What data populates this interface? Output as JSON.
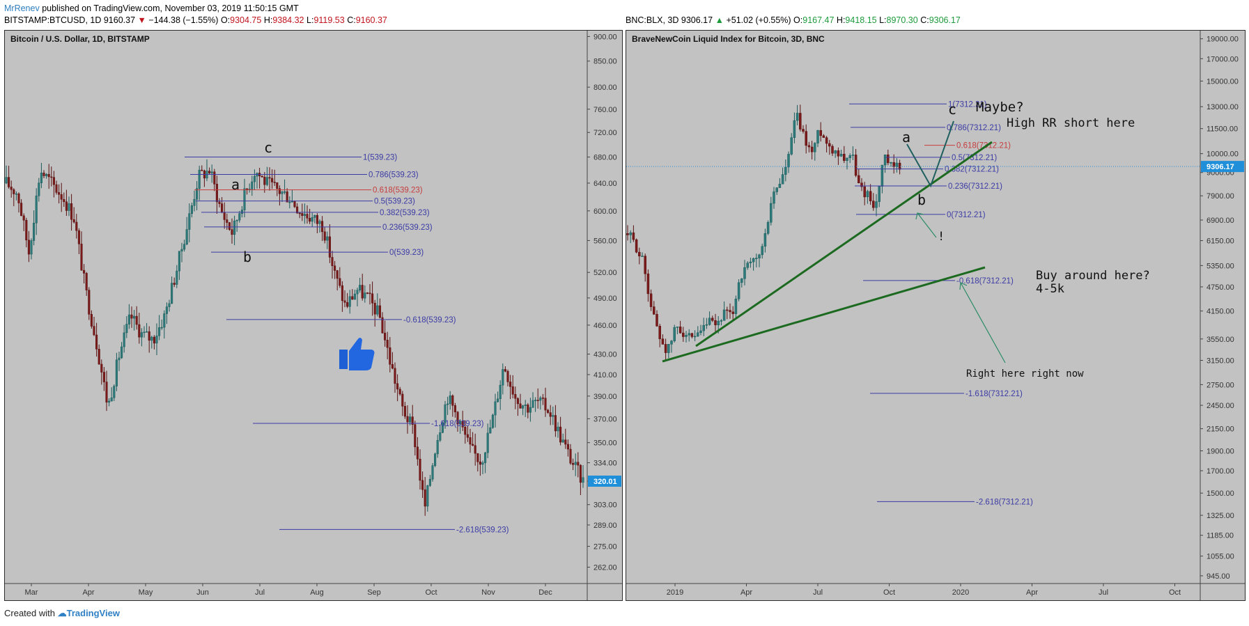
{
  "header": {
    "author": "MrRenev",
    "published": "published on TradingView.com, November 03, 2019 11:50:15 GMT"
  },
  "footer": {
    "created_with": "Created with",
    "brand": "TradingView"
  },
  "colors": {
    "bg": "#c2c2c2",
    "fib_blue": "#3b3ba5",
    "fib_red": "#c63d3d",
    "green_line": "#1c6a20",
    "candle_up": "#1a5a5a",
    "candle_down": "#5a1010",
    "price_badge": "#1e8fd8",
    "axis_text": "#333333"
  },
  "panels": [
    {
      "id": "left",
      "symbol_line": {
        "symbol": "BITSTAMP:BTCUSD, 1D",
        "last": "9160.37",
        "arrow": "▼",
        "change": "−144.38 (−1.55%)",
        "o_label": "O:",
        "o": "9304.75",
        "h_label": "H:",
        "h": "9384.32",
        "l_label": "L:",
        "l": "9119.53",
        "c_label": "C:",
        "c": "9160.37",
        "direction": "down"
      },
      "title": "Bitcoin / U.S. Dollar, 1D, BITSTAMP",
      "current_price": "320.01",
      "chart_data": {
        "type": "candlestick",
        "scale": "log",
        "y_ticks": [
          "900.00",
          "850.00",
          "800.00",
          "760.00",
          "720.00",
          "680.00",
          "640.00",
          "600.00",
          "560.00",
          "520.00",
          "490.00",
          "460.00",
          "430.00",
          "410.00",
          "390.00",
          "370.00",
          "350.00",
          "334.00",
          "320.00",
          "303.00",
          "289.00",
          "275.00",
          "262.00"
        ],
        "x_ticks": [
          "Mar",
          "Apr",
          "May",
          "Jun",
          "Jul",
          "Aug",
          "Sep",
          "Oct",
          "Nov",
          "Dec"
        ],
        "fib_levels": [
          {
            "label": "1(539.23)",
            "ratio": 1,
            "price": 680
          },
          {
            "label": "0.786(539.23)",
            "ratio": 0.786,
            "price": 653
          },
          {
            "label": "0.618(539.23)",
            "ratio": 0.618,
            "price": 630,
            "color": "red"
          },
          {
            "label": "0.5(539.23)",
            "ratio": 0.5,
            "price": 614
          },
          {
            "label": "0.382(539.23)",
            "ratio": 0.382,
            "price": 598
          },
          {
            "label": "0.236(539.23)",
            "ratio": 0.236,
            "price": 578
          },
          {
            "label": "0(539.23)",
            "ratio": 0,
            "price": 545
          },
          {
            "label": "-0.618(539.23)",
            "ratio": -0.618,
            "price": 466
          },
          {
            "label": "-1.618(539.23)",
            "ratio": -1.618,
            "price": 366
          },
          {
            "label": "-2.618(539.23)",
            "ratio": -2.618,
            "price": 286
          }
        ],
        "wave_labels": [
          "a",
          "b",
          "c"
        ],
        "price_path": [
          [
            0,
            640
          ],
          [
            1,
            625
          ],
          [
            2,
            545
          ],
          [
            3,
            660
          ],
          [
            4,
            640
          ],
          [
            5,
            620
          ],
          [
            6,
            590
          ],
          [
            7,
            500
          ],
          [
            8,
            440
          ],
          [
            9,
            380
          ],
          [
            10,
            430
          ],
          [
            11,
            470
          ],
          [
            12,
            450
          ],
          [
            13,
            445
          ],
          [
            14,
            470
          ],
          [
            15,
            520
          ],
          [
            16,
            580
          ],
          [
            17,
            650
          ],
          [
            18,
            660
          ],
          [
            19,
            600
          ],
          [
            20,
            570
          ],
          [
            21,
            620
          ],
          [
            22,
            660
          ],
          [
            23,
            640
          ],
          [
            24,
            630
          ],
          [
            25,
            620
          ],
          [
            26,
            600
          ],
          [
            27,
            590
          ],
          [
            28,
            580
          ],
          [
            29,
            520
          ],
          [
            30,
            480
          ],
          [
            31,
            500
          ],
          [
            32,
            490
          ],
          [
            33,
            470
          ],
          [
            34,
            420
          ],
          [
            35,
            380
          ],
          [
            36,
            360
          ],
          [
            37,
            300
          ],
          [
            38,
            350
          ],
          [
            39,
            390
          ],
          [
            40,
            370
          ],
          [
            41,
            345
          ],
          [
            42,
            335
          ],
          [
            43,
            370
          ],
          [
            44,
            420
          ],
          [
            45,
            390
          ],
          [
            46,
            380
          ],
          [
            47,
            385
          ],
          [
            48,
            378
          ],
          [
            49,
            355
          ],
          [
            50,
            335
          ],
          [
            51,
            320
          ]
        ]
      }
    },
    {
      "id": "right",
      "symbol_line": {
        "symbol": "BNC:BLX, 3D",
        "last": "9306.17",
        "arrow": "▲",
        "change": "+51.02 (+0.55%)",
        "o_label": "O:",
        "o": "9167.47",
        "h_label": "H:",
        "h": "9418.15",
        "l_label": "L:",
        "l": "8970.30",
        "c_label": "C:",
        "c": "9306.17",
        "direction": "up"
      },
      "title": "BraveNewCoin Liquid Index for Bitcoin, 3D, BNC",
      "current_price": "9306.17",
      "chart_data": {
        "type": "candlestick",
        "scale": "log",
        "y_ticks": [
          "19000.00",
          "17000.00",
          "15000.00",
          "13000.00",
          "11500.00",
          "10000.00",
          "9000.00",
          "7900.00",
          "6900.00",
          "6150.00",
          "5350.00",
          "4750.00",
          "4150.00",
          "3550.00",
          "3150.00",
          "2750.00",
          "2450.00",
          "2150.00",
          "1900.00",
          "1700.00",
          "1500.00",
          "1325.00",
          "1185.00",
          "1055.00",
          "945.00"
        ],
        "x_ticks": [
          "2019",
          "Apr",
          "Jul",
          "Oct",
          "2020",
          "Apr",
          "Jul",
          "Oct"
        ],
        "fib_levels": [
          {
            "label": "1(7312.21)",
            "ratio": 1,
            "price": 13200
          },
          {
            "label": "0.786(7312.21)",
            "ratio": 0.786,
            "price": 11580
          },
          {
            "label": "0.618(7312.21)",
            "ratio": 0.618,
            "price": 10480,
            "color": "red"
          },
          {
            "label": "0.5(7312.21)",
            "ratio": 0.5,
            "price": 9800
          },
          {
            "label": "0.382(7312.21)",
            "ratio": 0.382,
            "price": 9180
          },
          {
            "label": "0.236(7312.21)",
            "ratio": 0.236,
            "price": 8350
          },
          {
            "label": "0(7312.21)",
            "ratio": 0,
            "price": 7120
          },
          {
            "label": "-0.618(7312.21)",
            "ratio": -0.618,
            "price": 4920
          },
          {
            "label": "-1.618(7312.21)",
            "ratio": -1.618,
            "price": 2620
          },
          {
            "label": "-2.618(7312.21)",
            "ratio": -2.618,
            "price": 1430
          }
        ],
        "wave_labels": [
          "a",
          "b",
          "c"
        ],
        "annotations": [
          {
            "text": "Maybe?"
          },
          {
            "text": "High RR short here"
          },
          {
            "text": "Buy around here?"
          },
          {
            "text": "4-5k"
          },
          {
            "text": "Right here right now"
          },
          {
            "text": "!"
          }
        ],
        "price_path": [
          [
            0,
            6400
          ],
          [
            1,
            6000
          ],
          [
            2,
            5400
          ],
          [
            3,
            4200
          ],
          [
            4,
            3600
          ],
          [
            5,
            3300
          ],
          [
            6,
            3800
          ],
          [
            7,
            3700
          ],
          [
            8,
            3500
          ],
          [
            9,
            3600
          ],
          [
            10,
            3900
          ],
          [
            11,
            3800
          ],
          [
            12,
            4100
          ],
          [
            13,
            4000
          ],
          [
            14,
            5000
          ],
          [
            15,
            5300
          ],
          [
            16,
            5500
          ],
          [
            17,
            6000
          ],
          [
            18,
            7800
          ],
          [
            19,
            8500
          ],
          [
            20,
            9500
          ],
          [
            21,
            12500
          ],
          [
            22,
            11000
          ],
          [
            23,
            10000
          ],
          [
            24,
            11500
          ],
          [
            25,
            10500
          ],
          [
            26,
            10200
          ],
          [
            27,
            9800
          ],
          [
            28,
            10000
          ],
          [
            29,
            8200
          ],
          [
            30,
            8000
          ],
          [
            31,
            7400
          ],
          [
            32,
            9800
          ],
          [
            33,
            9200
          ],
          [
            34,
            9300
          ]
        ]
      }
    }
  ]
}
